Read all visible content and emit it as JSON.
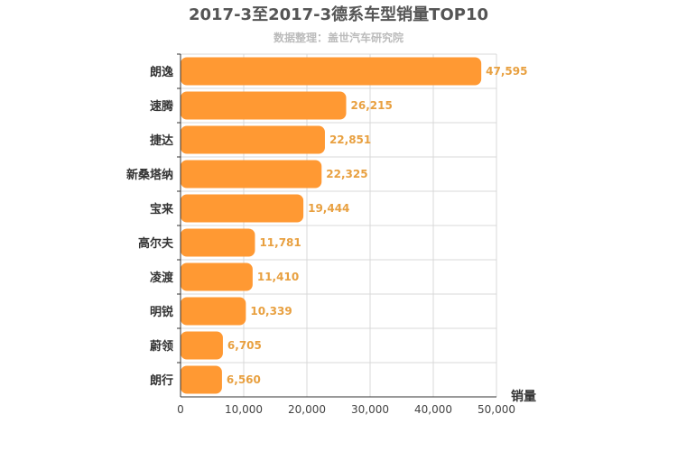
{
  "chart_data": {
    "type": "bar",
    "orientation": "horizontal",
    "title": "2017-3至2017-3德系车型销量TOP10",
    "subtitle": "数据整理：盖世汽车研究院",
    "xlabel": "销量",
    "xlim": [
      0,
      50000
    ],
    "xticks": [
      "0",
      "10,000",
      "20,000",
      "30,000",
      "40,000",
      "50,000"
    ],
    "grid": true,
    "categories": [
      "朗逸",
      "速腾",
      "捷达",
      "新桑塔纳",
      "宝来",
      "高尔夫",
      "凌渡",
      "明锐",
      "蔚领",
      "朗行"
    ],
    "values": [
      47595,
      26215,
      22851,
      22325,
      19444,
      11781,
      11410,
      10339,
      6705,
      6560
    ],
    "value_labels": [
      "47,595",
      "26,215",
      "22,851",
      "22,325",
      "19,444",
      "11,781",
      "11,410",
      "10,339",
      "6,705",
      "6,560"
    ],
    "bar_color": "#ff9933",
    "label_color": "#e8a040"
  }
}
